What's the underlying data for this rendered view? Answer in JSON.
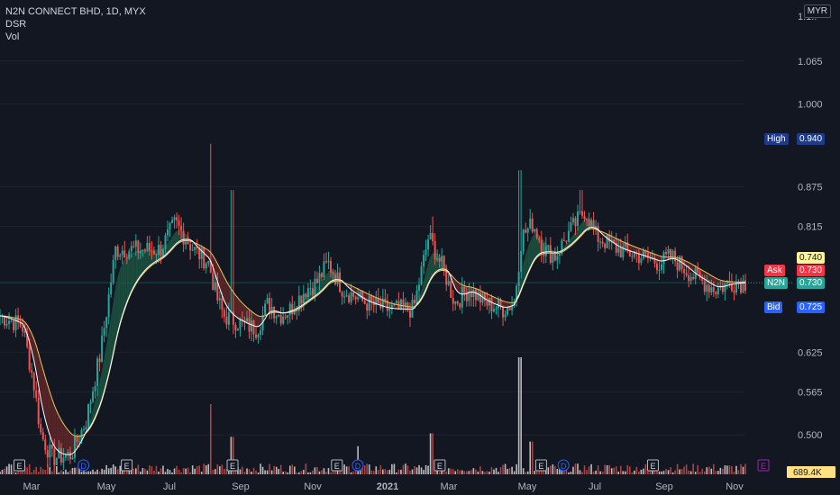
{
  "header": {
    "symbol_line": "N2N CONNECT BHD, 1D, MYX",
    "indicator_1": "DSR",
    "indicator_2": "Vol",
    "currency": "MYR"
  },
  "price_axis": {
    "ticks": [
      "1.065",
      "1.000",
      "0.875",
      "0.815",
      "0.625",
      "0.565",
      "0.500"
    ],
    "partial_top": "1.1..",
    "volume_label": "689.4K"
  },
  "price_tags": {
    "high": {
      "name": "High",
      "value": "0.940",
      "color": "#1e3a8a"
    },
    "ma": {
      "value": "0.740",
      "color": "#fff59d"
    },
    "ask": {
      "name": "Ask",
      "value": "0.730",
      "color": "#f23645"
    },
    "last": {
      "name": "N2N",
      "value": "0.730",
      "color": "#26a69a"
    },
    "bid": {
      "name": "Bid",
      "value": "0.725",
      "color": "#2962ff"
    }
  },
  "time_axis": {
    "labels": [
      {
        "text": "Mar",
        "bold": false
      },
      {
        "text": "May",
        "bold": false
      },
      {
        "text": "Jul",
        "bold": false
      },
      {
        "text": "Sep",
        "bold": false
      },
      {
        "text": "Nov",
        "bold": false
      },
      {
        "text": "2021",
        "bold": true
      },
      {
        "text": "Mar",
        "bold": false
      },
      {
        "text": "May",
        "bold": false
      },
      {
        "text": "Jul",
        "bold": false
      },
      {
        "text": "Sep",
        "bold": false
      },
      {
        "text": "Nov",
        "bold": false
      }
    ]
  },
  "events": [
    {
      "type": "E",
      "t": 0.026
    },
    {
      "type": "D",
      "t": 0.112
    },
    {
      "type": "E",
      "t": 0.17
    },
    {
      "type": "E",
      "t": 0.312
    },
    {
      "type": "E",
      "t": 0.452
    },
    {
      "type": "D",
      "t": 0.48
    },
    {
      "type": "E",
      "t": 0.59
    },
    {
      "type": "E",
      "t": 0.726
    },
    {
      "type": "D",
      "t": 0.756
    },
    {
      "type": "E",
      "t": 0.876
    },
    {
      "type": "E",
      "t": 1.0
    }
  ],
  "colors": {
    "background": "#131722",
    "up": "#26a69a",
    "down": "#ef5350",
    "ma_fast": "#ffffff",
    "ma_slow": "#e7c65d",
    "cloud_up": "#1d5e45",
    "cloud_down": "#6b2a2a",
    "grid": "#1e222d",
    "volume": "#c94a47"
  },
  "chart_data": {
    "type": "candlestick",
    "title": "N2N CONNECT BHD, 1D, MYX",
    "x_start": "Feb 2020",
    "x_end": "Nov 2021",
    "price_ylim": [
      0.45,
      1.13
    ],
    "close_keypoints": [
      {
        "t": 0.0,
        "v": 0.68
      },
      {
        "t": 0.03,
        "v": 0.665
      },
      {
        "t": 0.045,
        "v": 0.58
      },
      {
        "t": 0.055,
        "v": 0.5
      },
      {
        "t": 0.07,
        "v": 0.465
      },
      {
        "t": 0.095,
        "v": 0.47
      },
      {
        "t": 0.115,
        "v": 0.52
      },
      {
        "t": 0.135,
        "v": 0.625
      },
      {
        "t": 0.155,
        "v": 0.78
      },
      {
        "t": 0.175,
        "v": 0.78
      },
      {
        "t": 0.215,
        "v": 0.78
      },
      {
        "t": 0.235,
        "v": 0.82
      },
      {
        "t": 0.26,
        "v": 0.78
      },
      {
        "t": 0.28,
        "v": 0.76
      },
      {
        "t": 0.29,
        "v": 0.71
      },
      {
        "t": 0.3,
        "v": 0.68
      },
      {
        "t": 0.32,
        "v": 0.67
      },
      {
        "t": 0.345,
        "v": 0.66
      },
      {
        "t": 0.36,
        "v": 0.7
      },
      {
        "t": 0.375,
        "v": 0.68
      },
      {
        "t": 0.39,
        "v": 0.69
      },
      {
        "t": 0.41,
        "v": 0.72
      },
      {
        "t": 0.425,
        "v": 0.73
      },
      {
        "t": 0.44,
        "v": 0.76
      },
      {
        "t": 0.46,
        "v": 0.72
      },
      {
        "t": 0.49,
        "v": 0.7
      },
      {
        "t": 0.52,
        "v": 0.69
      },
      {
        "t": 0.555,
        "v": 0.69
      },
      {
        "t": 0.575,
        "v": 0.8
      },
      {
        "t": 0.595,
        "v": 0.75
      },
      {
        "t": 0.61,
        "v": 0.7
      },
      {
        "t": 0.63,
        "v": 0.72
      },
      {
        "t": 0.65,
        "v": 0.7
      },
      {
        "t": 0.675,
        "v": 0.69
      },
      {
        "t": 0.69,
        "v": 0.7
      },
      {
        "t": 0.7,
        "v": 0.8
      },
      {
        "t": 0.715,
        "v": 0.82
      },
      {
        "t": 0.73,
        "v": 0.78
      },
      {
        "t": 0.745,
        "v": 0.77
      },
      {
        "t": 0.76,
        "v": 0.8
      },
      {
        "t": 0.785,
        "v": 0.84
      },
      {
        "t": 0.8,
        "v": 0.8
      },
      {
        "t": 0.83,
        "v": 0.78
      },
      {
        "t": 0.86,
        "v": 0.77
      },
      {
        "t": 0.885,
        "v": 0.76
      },
      {
        "t": 0.9,
        "v": 0.77
      },
      {
        "t": 0.93,
        "v": 0.74
      },
      {
        "t": 0.96,
        "v": 0.72
      },
      {
        "t": 0.98,
        "v": 0.73
      },
      {
        "t": 1.0,
        "v": 0.73
      }
    ],
    "spikes": [
      {
        "t": 0.283,
        "v": 0.94
      },
      {
        "t": 0.312,
        "v": 0.87
      },
      {
        "t": 0.698,
        "v": 0.9
      },
      {
        "t": 0.58,
        "v": 0.83
      },
      {
        "t": 0.78,
        "v": 0.87
      }
    ],
    "volume_spikes": [
      {
        "t": 0.283,
        "v": 0.6
      },
      {
        "t": 0.698,
        "v": 1.0
      },
      {
        "t": 0.58,
        "v": 0.35
      },
      {
        "t": 0.312,
        "v": 0.32
      },
      {
        "t": 0.712,
        "v": 0.28
      },
      {
        "t": 0.48,
        "v": 0.24
      }
    ]
  }
}
